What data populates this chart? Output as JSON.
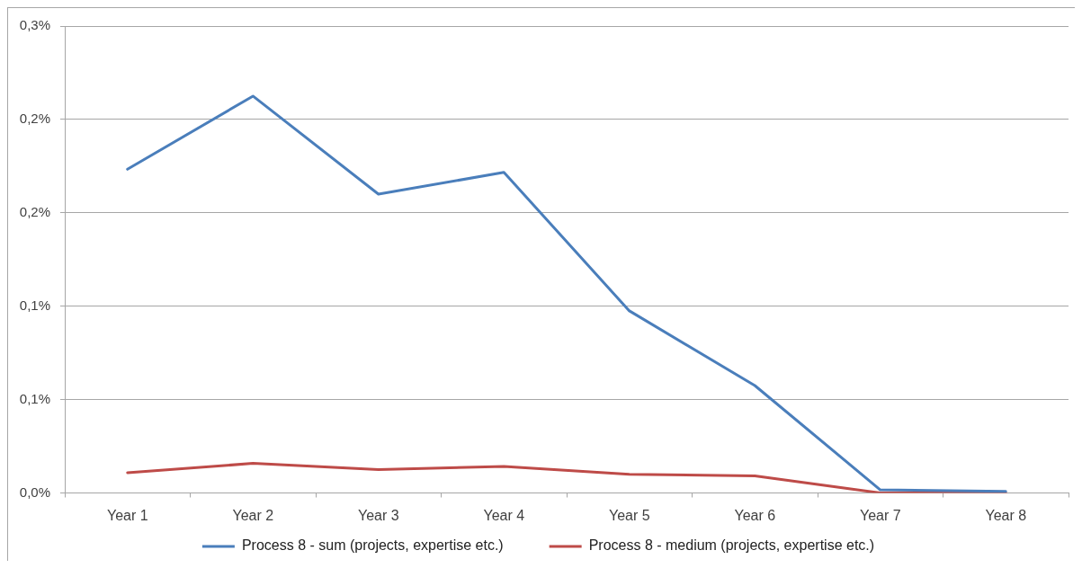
{
  "chart_data": {
    "type": "line",
    "categories": [
      "Year 1",
      "Year 2",
      "Year 3",
      "Year 4",
      "Year 5",
      "Year 6",
      "Year 7",
      "Year 8"
    ],
    "series": [
      {
        "name": "Process 8 - sum (projects, expertise etc.)",
        "color": "#4a7ebb",
        "values": [
          0.208,
          0.255,
          0.192,
          0.206,
          0.117,
          0.069,
          0.002,
          0.001
        ]
      },
      {
        "name": "Process 8 - medium (projects, expertise etc.)",
        "color": "#be4b48",
        "values": [
          0.013,
          0.019,
          0.015,
          0.017,
          0.012,
          0.011,
          0.0,
          0.0
        ]
      }
    ],
    "ylim": [
      0,
      0.3
    ],
    "yticks": [
      {
        "value": 0,
        "label": "0,0%"
      },
      {
        "value": 0.06,
        "label": "0,1%"
      },
      {
        "value": 0.12,
        "label": "0,1%"
      },
      {
        "value": 0.18,
        "label": "0,2%"
      },
      {
        "value": 0.24,
        "label": "0,2%"
      },
      {
        "value": 0.3,
        "label": "0,3%"
      }
    ],
    "grid": "y",
    "legend": "bottom",
    "line_style": "solid"
  }
}
